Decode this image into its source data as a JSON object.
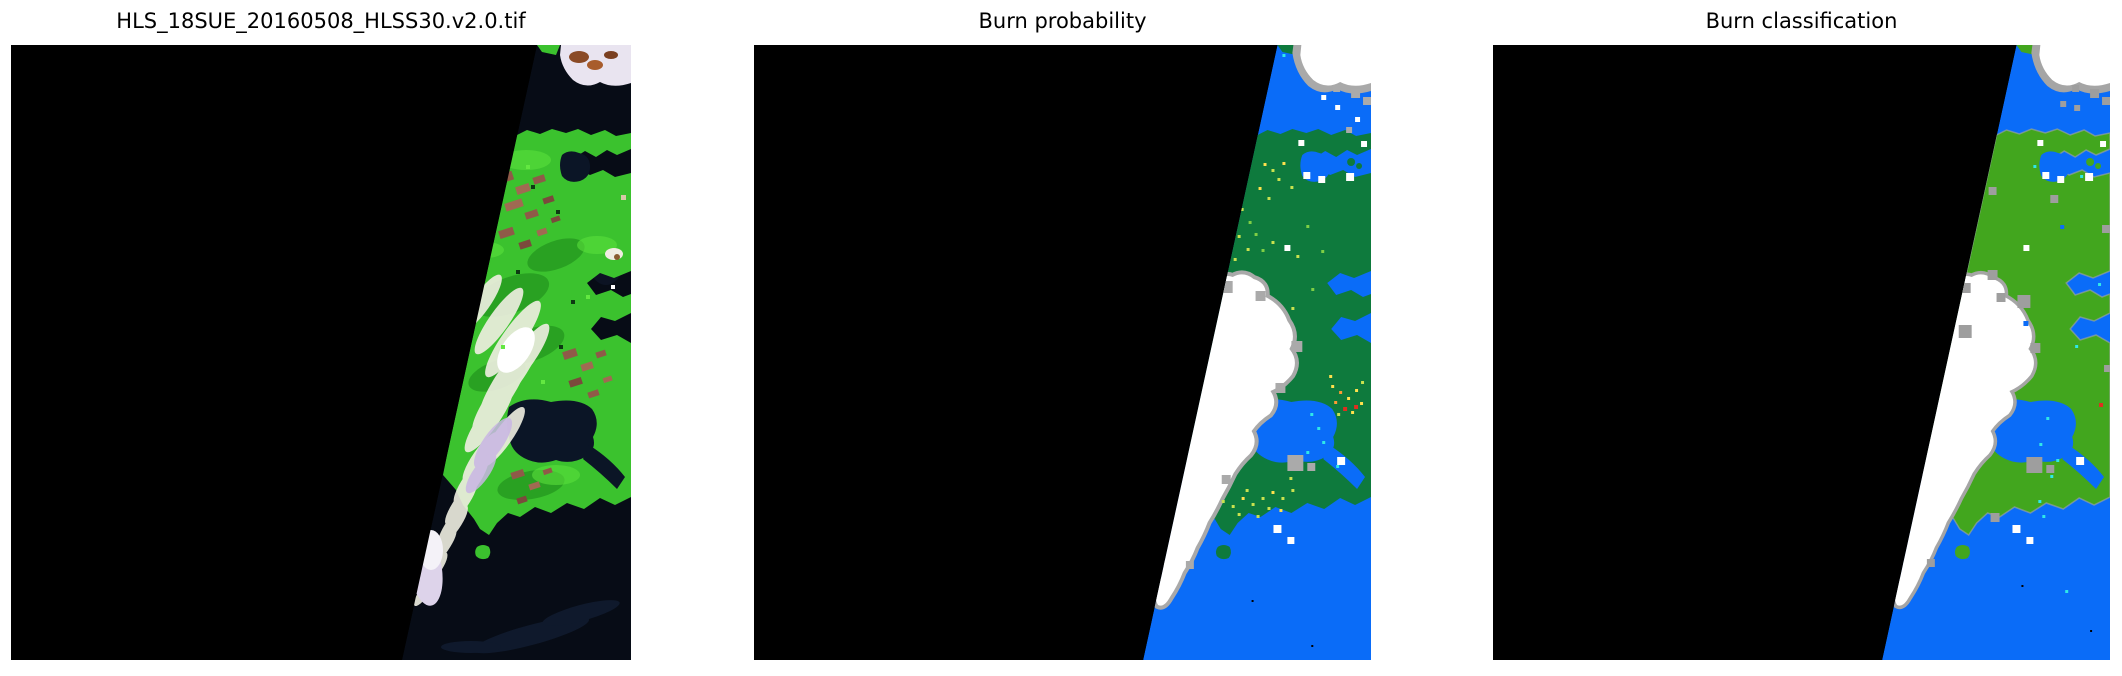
{
  "figure": {
    "background": "#ffffff",
    "title_color": "#000000",
    "description": "Three-panel satellite figure: HLS RGB tile, burn probability map, burn classification map"
  },
  "panels": [
    {
      "id": "rgb",
      "title": "HLS_18SUE_20160508_HLSS30.v2.0.tif",
      "type": "satellite-rgb-image",
      "colors": {
        "background": "#000000",
        "ocean": "#070c16",
        "ocean_streak": "#1b2c48",
        "land": "#3bc22e",
        "land_dark": "#157a15",
        "land_bright": "#5ae03c",
        "field_a": "#8f5a48",
        "field_b": "#a06a52",
        "field_c": "#7b4a3c",
        "water_dark": "#0b1526",
        "cloud": "#f0efe2",
        "cloud_core": "#ffffff",
        "cloud_lavender": "#c9b6e4",
        "cloud_bottom": "#ddd3ea",
        "cloud_bottom_core": "#f4f2f8",
        "cloud_top": "#e9e4f0",
        "cloud_brown_a": "#8a4a26",
        "cloud_brown_b": "#a85c2c",
        "cloud_brown_c": "#7a3f20",
        "spot_cloud": "#f0ece2",
        "spot_brown": "#8a5a30"
      },
      "palette": [
        "#0d3a12",
        "#63e841",
        "#d8c8a8",
        "#ffffff"
      ],
      "speckles": [
        [
          520,
          140,
          4,
          0
        ],
        [
          545,
          165,
          4,
          0
        ],
        [
          505,
          225,
          4,
          0
        ],
        [
          560,
          255,
          4,
          0
        ],
        [
          548,
          300,
          4,
          0
        ],
        [
          530,
          335,
          4,
          1
        ],
        [
          575,
          250,
          4,
          1
        ],
        [
          490,
          300,
          4,
          1
        ],
        [
          515,
          120,
          4,
          1
        ],
        [
          610,
          150,
          5,
          2
        ],
        [
          600,
          240,
          4,
          3
        ]
      ]
    },
    {
      "id": "burn-probability",
      "title": "Burn probability",
      "type": "burn-probability-map",
      "colors": {
        "background": "#000000",
        "ocean": "#0a6cf8",
        "land": "#0e7a3d",
        "cloud": "#ffffff",
        "cloud_fringe": "#a9a9a9",
        "island": "#0e7a3d"
      },
      "palette": [
        "#ffe14d",
        "#c9e24f",
        "#7fcf45",
        "#ff9a33",
        "#df2f20",
        "#2fe8e8",
        "#ffffff",
        "#aaaaaa",
        "#000000"
      ],
      "speckles": [
        [
          512,
          118,
          3,
          0
        ],
        [
          520,
          124,
          3,
          1
        ],
        [
          531,
          117,
          3,
          0
        ],
        [
          526,
          133,
          3,
          1
        ],
        [
          507,
          142,
          3,
          0
        ],
        [
          539,
          141,
          3,
          1
        ],
        [
          516,
          152,
          3,
          1
        ],
        [
          489,
          163,
          3,
          1
        ],
        [
          497,
          176,
          3,
          2
        ],
        [
          486,
          190,
          3,
          1
        ],
        [
          503,
          188,
          3,
          2
        ],
        [
          495,
          203,
          3,
          1
        ],
        [
          510,
          204,
          3,
          2
        ],
        [
          482,
          213,
          3,
          1
        ],
        [
          520,
          196,
          3,
          1
        ],
        [
          555,
          180,
          3,
          2
        ],
        [
          545,
          210,
          3,
          1
        ],
        [
          560,
          243,
          3,
          2
        ],
        [
          540,
          262,
          3,
          1
        ],
        [
          570,
          205,
          3,
          2
        ],
        [
          580,
          340,
          3,
          0
        ],
        [
          588,
          346,
          3,
          3
        ],
        [
          596,
          352,
          3,
          0
        ],
        [
          604,
          344,
          3,
          0
        ],
        [
          583,
          356,
          3,
          3
        ],
        [
          592,
          362,
          4,
          4
        ],
        [
          600,
          366,
          3,
          0
        ],
        [
          609,
          357,
          3,
          0
        ],
        [
          586,
          368,
          3,
          1
        ],
        [
          603,
          360,
          4,
          4
        ],
        [
          578,
          330,
          3,
          0
        ],
        [
          610,
          336,
          3,
          1
        ],
        [
          470,
          455,
          3,
          1
        ],
        [
          480,
          460,
          3,
          1
        ],
        [
          490,
          452,
          3,
          0
        ],
        [
          500,
          458,
          3,
          1
        ],
        [
          486,
          468,
          3,
          1
        ],
        [
          510,
          452,
          3,
          1
        ],
        [
          520,
          446,
          3,
          0
        ],
        [
          530,
          452,
          3,
          1
        ],
        [
          540,
          444,
          3,
          1
        ],
        [
          505,
          470,
          3,
          1
        ],
        [
          516,
          462,
          3,
          1
        ],
        [
          528,
          464,
          3,
          0
        ],
        [
          494,
          444,
          3,
          1
        ],
        [
          538,
          432,
          3,
          1
        ],
        [
          559,
          368,
          3,
          5
        ],
        [
          566,
          382,
          3,
          5
        ],
        [
          571,
          396,
          3,
          5
        ],
        [
          555,
          406,
          3,
          5
        ],
        [
          544,
          420,
          3,
          5
        ],
        [
          585,
          420,
          3,
          5
        ],
        [
          531,
          9,
          3,
          5
        ],
        [
          552,
          127,
          7,
          6
        ],
        [
          567,
          131,
          7,
          6
        ],
        [
          595,
          128,
          8,
          6
        ],
        [
          547,
          95,
          6,
          6
        ],
        [
          610,
          96,
          6,
          6
        ],
        [
          533,
          200,
          6,
          6
        ],
        [
          586,
          412,
          8,
          6
        ],
        [
          522,
          480,
          8,
          6
        ],
        [
          536,
          492,
          7,
          6
        ],
        [
          604,
          72,
          5,
          6
        ],
        [
          584,
          60,
          5,
          6
        ],
        [
          570,
          50,
          5,
          6
        ],
        [
          536,
          410,
          16,
          7
        ],
        [
          556,
          418,
          8,
          7
        ],
        [
          469,
          236,
          12,
          7
        ],
        [
          504,
          246,
          10,
          7
        ],
        [
          540,
          296,
          11,
          7
        ],
        [
          524,
          338,
          10,
          7
        ],
        [
          470,
          430,
          9,
          7
        ],
        [
          434,
          516,
          8,
          7
        ],
        [
          600,
          44,
          9,
          7
        ],
        [
          612,
          52,
          8,
          7
        ],
        [
          582,
          40,
          7,
          7
        ],
        [
          595,
          82,
          6,
          7
        ],
        [
          500,
          555,
          2,
          8
        ],
        [
          560,
          600,
          2,
          8
        ]
      ]
    },
    {
      "id": "burn-classification",
      "title": "Burn classification",
      "type": "burn-classification-map",
      "colors": {
        "background": "#000000",
        "ocean": "#0a6cf8",
        "land": "#42a61e",
        "cloud": "#ffffff",
        "cloud_fringe": "#a5a5a5",
        "island": "#42a61e"
      },
      "palette": [
        "#2fe8e8",
        "#df2f20",
        "#0a6cf8",
        "#9e9e9e",
        "#000000",
        "#ffffff"
      ],
      "speckles": [
        [
          543,
          120,
          3,
          0
        ],
        [
          585,
          300,
          3,
          0
        ],
        [
          556,
          372,
          3,
          0
        ],
        [
          549,
          398,
          3,
          0
        ],
        [
          566,
          414,
          3,
          0
        ],
        [
          608,
          238,
          3,
          0
        ],
        [
          575,
          545,
          3,
          0
        ],
        [
          590,
          130,
          3,
          0
        ],
        [
          552,
          470,
          3,
          0
        ],
        [
          560,
          430,
          3,
          0
        ],
        [
          548,
          455,
          3,
          0
        ],
        [
          609,
          358,
          4,
          1
        ],
        [
          533,
          276,
          5,
          2
        ],
        [
          570,
          180,
          4,
          2
        ],
        [
          468,
          280,
          13,
          3
        ],
        [
          527,
          250,
          13,
          3
        ],
        [
          497,
          225,
          10,
          3
        ],
        [
          560,
          150,
          8,
          3
        ],
        [
          500,
          468,
          9,
          3
        ],
        [
          498,
          142,
          8,
          3
        ],
        [
          612,
          180,
          8,
          3
        ],
        [
          614,
          320,
          7,
          3
        ],
        [
          536,
          412,
          16,
          3
        ],
        [
          556,
          420,
          8,
          3
        ],
        [
          584,
          60,
          6,
          3
        ],
        [
          470,
          238,
          10,
          3
        ],
        [
          506,
          248,
          9,
          3
        ],
        [
          540,
          298,
          10,
          3
        ],
        [
          436,
          514,
          8,
          3
        ],
        [
          600,
          44,
          9,
          3
        ],
        [
          612,
          52,
          8,
          3
        ],
        [
          582,
          40,
          7,
          3
        ],
        [
          570,
          56,
          6,
          3
        ],
        [
          531,
          540,
          2,
          4
        ],
        [
          600,
          585,
          2,
          4
        ],
        [
          595,
          128,
          8,
          5
        ],
        [
          552,
          127,
          7,
          5
        ],
        [
          567,
          131,
          7,
          5
        ],
        [
          547,
          95,
          6,
          5
        ],
        [
          610,
          96,
          6,
          5
        ],
        [
          533,
          200,
          6,
          5
        ],
        [
          586,
          412,
          8,
          5
        ],
        [
          522,
          480,
          8,
          5
        ],
        [
          536,
          492,
          7,
          5
        ]
      ]
    }
  ]
}
